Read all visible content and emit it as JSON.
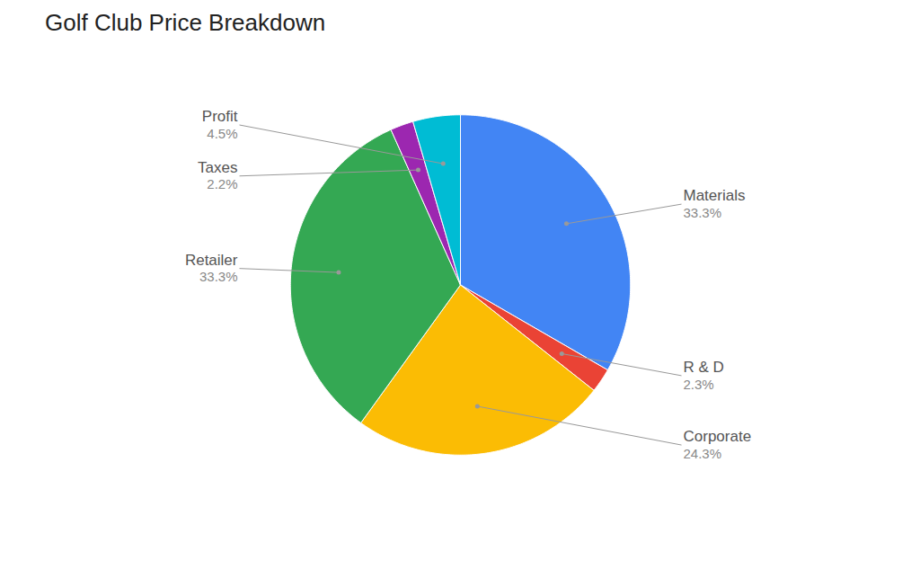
{
  "chart_data": {
    "type": "pie",
    "title": "Golf Club Price Breakdown",
    "categories": [
      "Materials",
      "R & D",
      "Corporate",
      "Retailer",
      "Taxes",
      "Profit"
    ],
    "values": [
      33.3,
      2.3,
      24.3,
      33.3,
      2.2,
      4.5
    ],
    "value_labels": [
      "33.3%",
      "2.3%",
      "24.3%",
      "33.3%",
      "2.2%",
      "4.5%"
    ],
    "colors": [
      "#4285F4",
      "#EA4335",
      "#FBBC04",
      "#34A853",
      "#9C27B0",
      "#00BCD4"
    ],
    "data_labels": true
  }
}
